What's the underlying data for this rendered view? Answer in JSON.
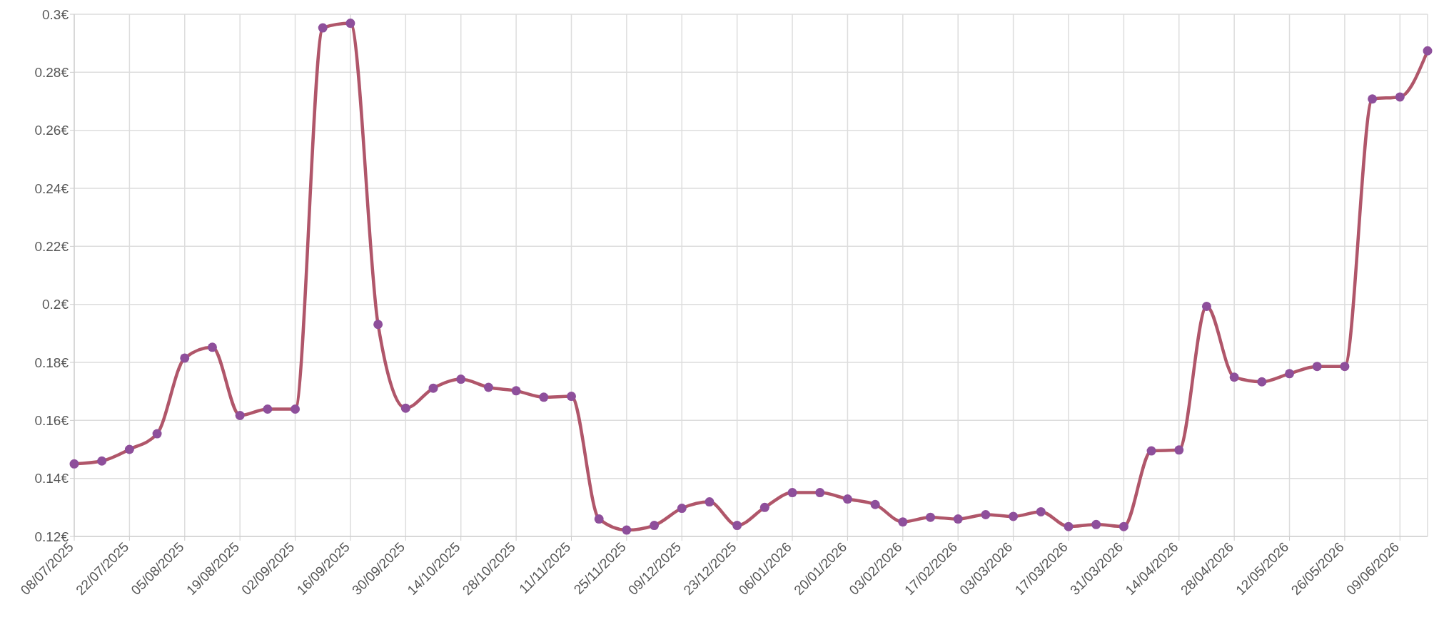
{
  "chart_data": {
    "type": "line",
    "categories": [
      "08/07/2025",
      null,
      "22/07/2025",
      null,
      "05/08/2025",
      null,
      "19/08/2025",
      null,
      "02/09/2025",
      null,
      "16/09/2025",
      null,
      "30/09/2025",
      null,
      "14/10/2025",
      null,
      "28/10/2025",
      null,
      "11/11/2025",
      null,
      "25/11/2025",
      null,
      "09/12/2025",
      null,
      "23/12/2025",
      null,
      "06/01/2026",
      null,
      "20/01/2026",
      null,
      "03/02/2026",
      null,
      "17/02/2026",
      null,
      "03/03/2026",
      null,
      "17/03/2026",
      null,
      "31/03/2026",
      null,
      "14/04/2026",
      null,
      "28/04/2026",
      null,
      "12/05/2026",
      null,
      "26/05/2026",
      null,
      "09/06/2026",
      null
    ],
    "series": [
      {
        "color": "#b0566a",
        "values": [
          0.145,
          0.146,
          0.15,
          0.1554,
          0.1815,
          0.1852,
          0.1617,
          0.1639,
          0.1639,
          0.2953,
          0.2969,
          0.1931,
          0.1642,
          0.1711,
          0.1742,
          0.1714,
          0.1702,
          0.168,
          0.1683,
          0.126,
          0.1222,
          0.1238,
          0.1297,
          0.1319,
          0.1238,
          0.13,
          0.1351,
          0.1351,
          0.1329,
          0.131,
          0.125,
          0.1266,
          0.126,
          0.1275,
          0.1269,
          0.1285,
          0.1234,
          0.1241,
          0.1234,
          0.1495,
          0.1498,
          0.1993,
          0.1749,
          0.1733,
          0.1761,
          0.1786,
          0.1786,
          0.2708,
          0.2715,
          0.2874
        ]
      }
    ],
    "ylim": [
      0.12,
      0.3
    ],
    "yticks": [
      {
        "value": 0.12,
        "label": "0.12€"
      },
      {
        "value": 0.14,
        "label": "0.14€"
      },
      {
        "value": 0.16,
        "label": "0.16€"
      },
      {
        "value": 0.18,
        "label": "0.18€"
      },
      {
        "value": 0.2,
        "label": "0.2€"
      },
      {
        "value": 0.22,
        "label": "0.22€"
      },
      {
        "value": 0.24,
        "label": "0.24€"
      },
      {
        "value": 0.26,
        "label": "0.26€"
      },
      {
        "value": 0.28,
        "label": "0.28€"
      },
      {
        "value": 0.3,
        "label": "0.3€"
      }
    ],
    "grid": true,
    "marker": "circle",
    "line_style": "solid"
  }
}
